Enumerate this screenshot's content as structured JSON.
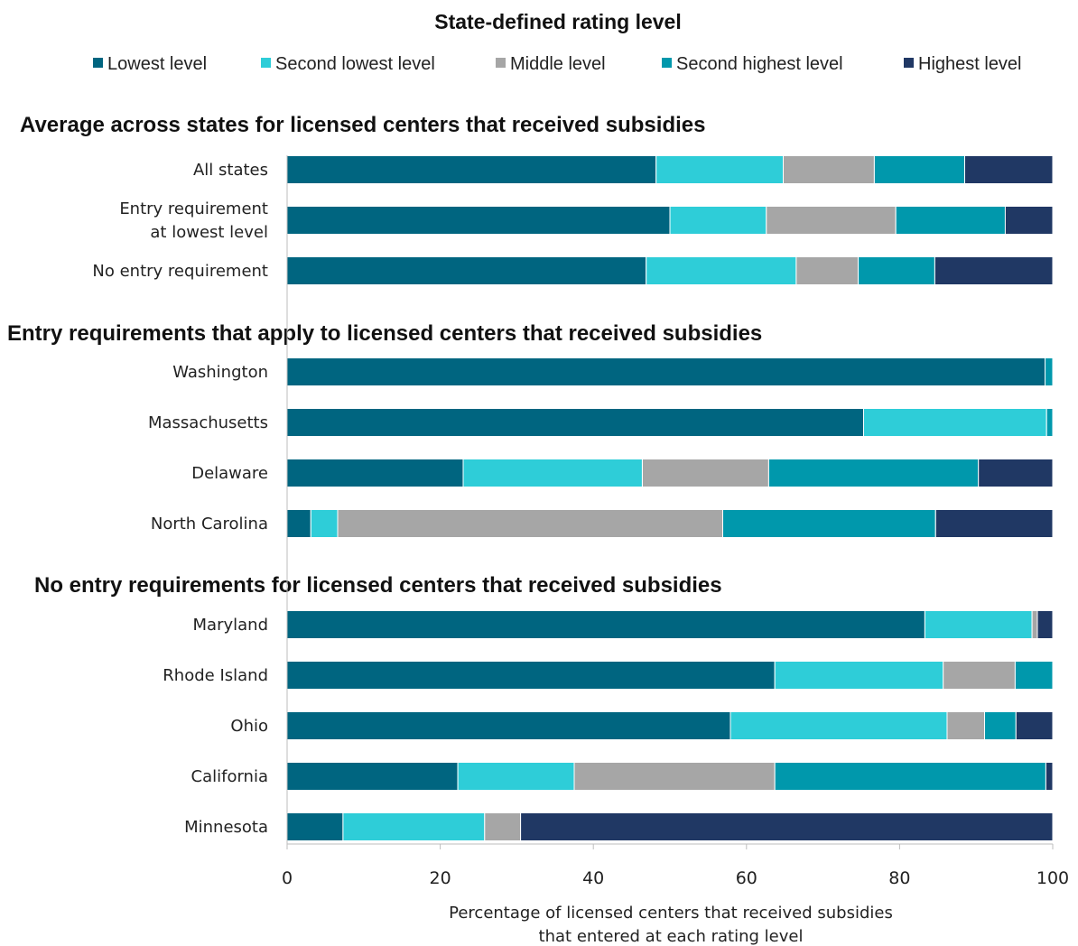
{
  "chart_data": {
    "type": "bar",
    "orientation": "horizontal",
    "stacked": true,
    "legend_title": "State-defined rating level",
    "legend_position": "top",
    "series": [
      {
        "name": "Lowest level",
        "color": "#006580"
      },
      {
        "name": "Second lowest level",
        "color": "#2ecdd8"
      },
      {
        "name": "Middle level",
        "color": "#a6a6a6"
      },
      {
        "name": "Second highest level",
        "color": "#0098ac"
      },
      {
        "name": "Highest level",
        "color": "#203864"
      }
    ],
    "sections": [
      {
        "title": "Average across states for licensed  centers that received subsidies",
        "rows": [
          {
            "label": "All states",
            "values": [
              48.2,
              16.6,
              11.9,
              11.8,
              11.5
            ]
          },
          {
            "label": "Entry requirement\nat lowest level",
            "values": [
              50.0,
              12.6,
              16.9,
              14.3,
              6.2
            ]
          },
          {
            "label": "No entry requirement",
            "values": [
              46.9,
              19.6,
              8.1,
              10.0,
              15.4
            ]
          }
        ]
      },
      {
        "title": "Entry requirements  that apply  to licensed  centers  that received  subsidies",
        "rows": [
          {
            "label": "Washington",
            "values": [
              99.0,
              0.0,
              0.0,
              1.0,
              0.0
            ]
          },
          {
            "label": "Massachusetts",
            "values": [
              75.3,
              23.9,
              0.0,
              0.8,
              0.0
            ]
          },
          {
            "label": "Delaware",
            "values": [
              23.0,
              23.4,
              16.5,
              27.4,
              9.7
            ]
          },
          {
            "label": "North Carolina",
            "values": [
              3.1,
              3.5,
              50.3,
              27.8,
              15.3
            ]
          }
        ]
      },
      {
        "title": "No entry  requirements for licensed  centers that received  subsidies",
        "rows": [
          {
            "label": "Maryland",
            "values": [
              83.3,
              14.0,
              0.7,
              0.0,
              2.0
            ]
          },
          {
            "label": "Rhode Island",
            "values": [
              63.7,
              22.0,
              9.4,
              4.9,
              0.0
            ]
          },
          {
            "label": "Ohio",
            "values": [
              57.9,
              28.3,
              4.9,
              4.1,
              4.8
            ]
          },
          {
            "label": "California",
            "values": [
              22.3,
              15.2,
              26.2,
              35.4,
              0.9
            ]
          },
          {
            "label": "Minnesota",
            "values": [
              7.3,
              18.5,
              4.7,
              0.0,
              69.5
            ]
          }
        ]
      }
    ],
    "x_ticks": [
      0,
      20,
      40,
      60,
      80,
      100
    ],
    "xlim": [
      0,
      100
    ],
    "xlabel": [
      "Percentage of licensed centers that received subsidies",
      "that entered at each rating level"
    ],
    "grid": false
  }
}
